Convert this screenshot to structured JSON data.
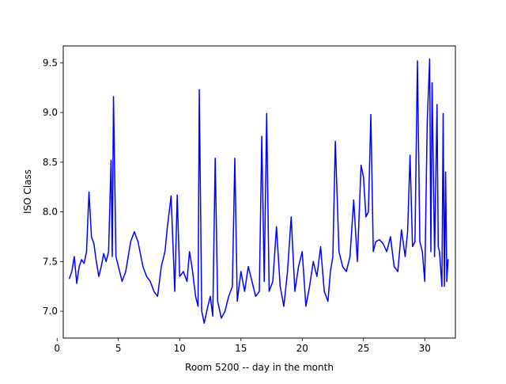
{
  "chart_data": {
    "type": "line",
    "title": "",
    "xlabel": "Room 5200 -- day in the month",
    "ylabel": "ISO Class",
    "xlim": [
      0.5,
      32.5
    ],
    "ylim": [
      6.73,
      9.67
    ],
    "xticks": [
      0,
      5,
      10,
      15,
      20,
      25,
      30
    ],
    "yticks": [
      7.0,
      7.5,
      8.0,
      8.5,
      9.0,
      9.5
    ],
    "ytick_labels": [
      "7.0",
      "7.5",
      "8.0",
      "8.5",
      "9.0",
      "9.5"
    ],
    "grid": false,
    "legend": "none",
    "series": [
      {
        "color": "#0000ff",
        "x": [
          1.0,
          1.2,
          1.4,
          1.6,
          1.8,
          2.0,
          2.2,
          2.4,
          2.6,
          2.8,
          3.0,
          3.2,
          3.4,
          3.6,
          3.8,
          4.0,
          4.2,
          4.4,
          4.5,
          4.6,
          4.8,
          5.0,
          5.3,
          5.6,
          6.0,
          6.3,
          6.6,
          7.0,
          7.3,
          7.6,
          7.9,
          8.2,
          8.5,
          8.8,
          9.0,
          9.3,
          9.6,
          9.8,
          10.0,
          10.3,
          10.6,
          10.8,
          11.0,
          11.3,
          11.5,
          11.6,
          11.8,
          12.0,
          12.3,
          12.5,
          12.7,
          12.9,
          13.1,
          13.4,
          13.7,
          14.0,
          14.3,
          14.5,
          14.7,
          15.0,
          15.3,
          15.6,
          15.9,
          16.2,
          16.5,
          16.7,
          16.9,
          17.1,
          17.3,
          17.6,
          17.9,
          18.2,
          18.5,
          18.8,
          19.1,
          19.4,
          19.7,
          20.0,
          20.3,
          20.6,
          20.9,
          21.2,
          21.5,
          21.8,
          22.1,
          22.3,
          22.5,
          22.7,
          23.0,
          23.3,
          23.6,
          23.9,
          24.2,
          24.5,
          24.8,
          25.0,
          25.2,
          25.4,
          25.6,
          25.8,
          26.0,
          26.3,
          26.6,
          26.9,
          27.2,
          27.5,
          27.8,
          28.1,
          28.4,
          28.6,
          28.8,
          29.0,
          29.2,
          29.4,
          29.6,
          29.8,
          30.0,
          30.2,
          30.4,
          30.5,
          30.6,
          30.8,
          31.0,
          31.1,
          31.2,
          31.4,
          31.5,
          31.6,
          31.7,
          31.8,
          31.9
        ],
        "y": [
          7.33,
          7.4,
          7.55,
          7.28,
          7.45,
          7.52,
          7.48,
          7.6,
          8.2,
          7.75,
          7.68,
          7.5,
          7.35,
          7.45,
          7.58,
          7.5,
          7.6,
          8.52,
          7.55,
          9.16,
          7.55,
          7.45,
          7.3,
          7.4,
          7.7,
          7.8,
          7.7,
          7.45,
          7.35,
          7.3,
          7.2,
          7.15,
          7.45,
          7.6,
          7.85,
          8.16,
          7.2,
          8.17,
          7.35,
          7.4,
          7.3,
          7.6,
          7.45,
          7.15,
          7.05,
          9.23,
          7.0,
          6.88,
          7.05,
          7.15,
          6.95,
          8.54,
          7.1,
          6.93,
          7.0,
          7.15,
          7.25,
          8.54,
          7.1,
          7.4,
          7.2,
          7.45,
          7.3,
          7.15,
          7.2,
          8.76,
          7.3,
          8.99,
          7.2,
          7.3,
          7.85,
          7.25,
          7.05,
          7.4,
          7.95,
          7.2,
          7.45,
          7.6,
          7.05,
          7.25,
          7.5,
          7.35,
          7.65,
          7.2,
          7.1,
          7.4,
          7.55,
          8.71,
          7.6,
          7.45,
          7.4,
          7.55,
          8.12,
          7.5,
          8.47,
          8.35,
          7.95,
          8.0,
          8.98,
          7.6,
          7.7,
          7.72,
          7.68,
          7.6,
          7.75,
          7.45,
          7.4,
          7.82,
          7.55,
          7.8,
          8.57,
          7.65,
          7.7,
          9.52,
          7.7,
          7.6,
          7.3,
          8.9,
          9.54,
          7.6,
          9.3,
          7.55,
          9.08,
          7.65,
          7.6,
          7.25,
          8.99,
          7.25,
          8.4,
          7.3,
          7.52
        ]
      }
    ]
  }
}
